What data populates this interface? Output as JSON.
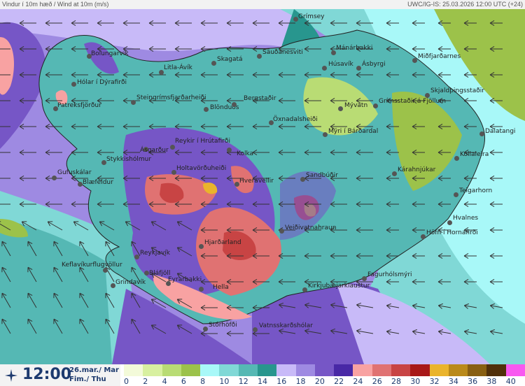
{
  "header": {
    "title": "Vindur í 10m hæð / Wind at 10m (m/s)",
    "run_info": "UWC/IG-IS: 25.03.2026 12:00 UTC (+24)"
  },
  "footer": {
    "time": "12:00",
    "date_line1": "26.mar./ Mar",
    "date_line2": "Fim./ Thu",
    "logo_icon": "wind-compass-icon"
  },
  "legend": {
    "unit": "m/s",
    "ticks": [
      "0",
      "2",
      "4",
      "6",
      "8",
      "10",
      "12",
      "14",
      "16",
      "18",
      "20",
      "22",
      "24",
      "26",
      "28",
      "30",
      "32",
      "34",
      "36",
      "38",
      "40"
    ],
    "colors": [
      "#f3fad9",
      "#d8f0a0",
      "#b9dc74",
      "#9cc24a",
      "#a8f8f8",
      "#80d8d6",
      "#55b8b4",
      "#28968e",
      "#c8baf8",
      "#9e8ae2",
      "#7656c6",
      "#4828a6",
      "#f8a2a2",
      "#e07272",
      "#c84444",
      "#a81818",
      "#eab42c",
      "#ba8a1a",
      "#885f12",
      "#50300a",
      "#f858f0"
    ]
  },
  "stations": [
    {
      "name": "Grímsey"
    },
    {
      "name": "Bolungarvík"
    },
    {
      "name": "Hólar í Dýrafirði"
    },
    {
      "name": "Patreksfjörður"
    },
    {
      "name": "Litla-Ávík"
    },
    {
      "name": "Skagatá"
    },
    {
      "name": "Sauðanesviti"
    },
    {
      "name": "Steingrímsfjarðarheiði"
    },
    {
      "name": "Blönduós"
    },
    {
      "name": "Bergstaðir"
    },
    {
      "name": "Öxnadalsheiði"
    },
    {
      "name": "Ásgarður"
    },
    {
      "name": "Reykir í Hrútafirði"
    },
    {
      "name": "Kolka"
    },
    {
      "name": "Stykkishólmur"
    },
    {
      "name": "Gufuskálar"
    },
    {
      "name": "Blæfeldur"
    },
    {
      "name": "Holtavörðuheiði"
    },
    {
      "name": "Hveravellir"
    },
    {
      "name": "Mánárbakki"
    },
    {
      "name": "Húsavík"
    },
    {
      "name": "Ásbyrgi"
    },
    {
      "name": "Miðfjarðarnes"
    },
    {
      "name": "Mývatn"
    },
    {
      "name": "Grímsstaðir á Fjöllum"
    },
    {
      "name": "Skjaldþingsstaðir"
    },
    {
      "name": "Mýri í Bárðardal"
    },
    {
      "name": "Dalatangi"
    },
    {
      "name": "Kollaleira"
    },
    {
      "name": "Kárahnjúkar"
    },
    {
      "name": "Sandbúðir"
    },
    {
      "name": "Teigarhorn"
    },
    {
      "name": "Veiðivatnahraun"
    },
    {
      "name": "Hvalnes"
    },
    {
      "name": "Höfn í Hornafirði"
    },
    {
      "name": "Hjarðarland"
    },
    {
      "name": "Reykjavík"
    },
    {
      "name": "Keflavíkurflugvöllur"
    },
    {
      "name": "Bláfjöll"
    },
    {
      "name": "Grindavík"
    },
    {
      "name": "Eyrarbakki"
    },
    {
      "name": "Hella"
    },
    {
      "name": "Kirkjubæjarklaustur"
    },
    {
      "name": "Fagurhólsmýri"
    },
    {
      "name": "Stórhöfði"
    },
    {
      "name": "Vatnsskarðshólar"
    }
  ]
}
